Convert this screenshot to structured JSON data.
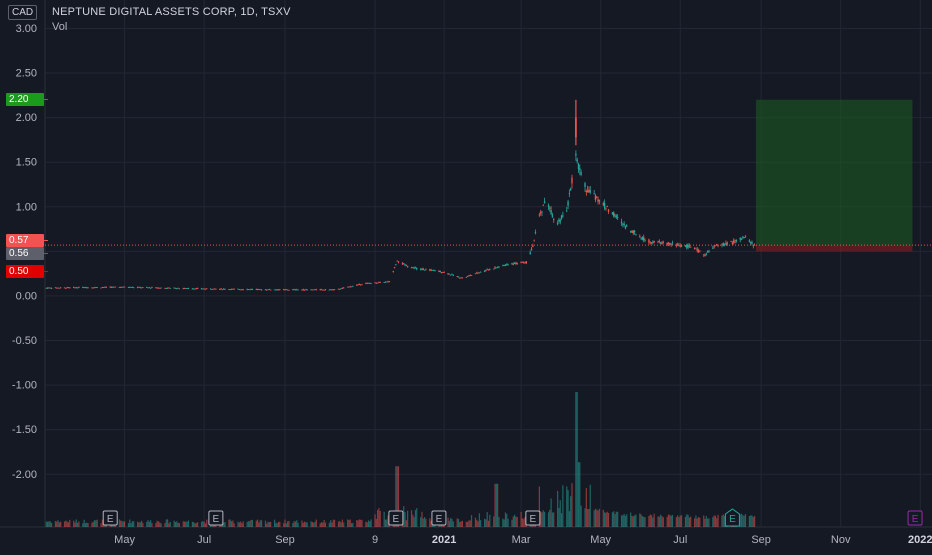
{
  "header": {
    "currency": "CAD",
    "symbol_line": "NEPTUNE DIGITAL ASSETS CORP, 1D, TSXV",
    "volume_label": "Vol"
  },
  "price_badges": [
    {
      "label": "2.20",
      "value": 2.2,
      "color": "#1b9b1b"
    },
    {
      "label": "0.57",
      "value": 0.57,
      "color": "#f05350"
    },
    {
      "label": "0.56",
      "value": 0.56,
      "color": "#5d606b"
    },
    {
      "label": "0.50",
      "value": 0.5,
      "color": "#e00000"
    }
  ],
  "colors": {
    "background": "#151924",
    "grid": "#232734",
    "axis_text": "#b2b5be",
    "up": "#26a69a",
    "down": "#ef5350",
    "target_zone": "#1e4a22",
    "stop_zone": "#5a1a1f",
    "price_line": "#ef5350",
    "earnings_future": "#9c27b0"
  },
  "earnings_markers": [
    {
      "label": "E",
      "date": "2020-04-20",
      "style": "past"
    },
    {
      "label": "E",
      "date": "2020-07-10",
      "style": "past"
    },
    {
      "label": "E",
      "date": "2020-11-25",
      "style": "past"
    },
    {
      "label": "E",
      "date": "2020-12-28",
      "style": "past"
    },
    {
      "label": "E",
      "date": "2021-03-10",
      "style": "past"
    },
    {
      "label": "E",
      "date": "2021-08-10",
      "style": "recent"
    },
    {
      "label": "E",
      "date": "2021-12-28",
      "style": "future"
    }
  ],
  "position_tool": {
    "start_date": "2021-08-28",
    "end_date": "2021-12-26",
    "entry": 0.56,
    "target": 2.2,
    "stop": 0.5
  },
  "chart_data": {
    "type": "candlestick",
    "title": "NEPTUNE DIGITAL ASSETS CORP, 1D, TSXV",
    "currency": "CAD",
    "y_ticks": [
      3.0,
      2.5,
      2.0,
      1.5,
      1.0,
      0.5,
      0.0,
      -0.5,
      -1.0,
      -1.5,
      -2.0
    ],
    "y_tick_labels": [
      "3.00",
      "2.50",
      "2.00",
      "1.50",
      "1.00",
      "0.50",
      "0.00",
      "-0.50",
      "-1.00",
      "-1.50",
      "-2.00"
    ],
    "ylim": [
      -2.3,
      3.05
    ],
    "xlim": [
      "2020-03-01",
      "2022-01-10"
    ],
    "x_ticks": [
      {
        "label": "May",
        "date": "2020-05-01"
      },
      {
        "label": "Jul",
        "date": "2020-07-01"
      },
      {
        "label": "Sep",
        "date": "2020-09-01"
      },
      {
        "label": "9",
        "date": "2020-11-09"
      },
      {
        "label": "2021",
        "date": "2021-01-01"
      },
      {
        "label": "Mar",
        "date": "2021-03-01"
      },
      {
        "label": "May",
        "date": "2021-05-01"
      },
      {
        "label": "Jul",
        "date": "2021-07-01"
      },
      {
        "label": "Sep",
        "date": "2021-09-01"
      },
      {
        "label": "Nov",
        "date": "2021-11-01"
      },
      {
        "label": "2022",
        "date": "2022-01-01"
      }
    ],
    "price_path": [
      [
        "2020-03-01",
        0.09
      ],
      [
        "2020-05-01",
        0.1
      ],
      [
        "2020-07-01",
        0.08
      ],
      [
        "2020-09-01",
        0.07
      ],
      [
        "2020-10-10",
        0.07
      ],
      [
        "2020-11-01",
        0.14
      ],
      [
        "2020-11-20",
        0.16
      ],
      [
        "2020-11-26",
        0.4
      ],
      [
        "2020-12-05",
        0.32
      ],
      [
        "2020-12-31",
        0.27
      ],
      [
        "2021-01-15",
        0.2
      ],
      [
        "2021-02-05",
        0.3
      ],
      [
        "2021-02-20",
        0.36
      ],
      [
        "2021-03-05",
        0.38
      ],
      [
        "2021-03-10",
        0.55
      ],
      [
        "2021-03-14",
        0.85
      ],
      [
        "2021-03-20",
        1.08
      ],
      [
        "2021-03-28",
        0.8
      ],
      [
        "2021-04-05",
        0.95
      ],
      [
        "2021-04-12",
        1.55
      ],
      [
        "2021-04-20",
        1.2
      ],
      [
        "2021-05-05",
        1.0
      ],
      [
        "2021-05-20",
        0.78
      ],
      [
        "2021-06-05",
        0.62
      ],
      [
        "2021-06-25",
        0.58
      ],
      [
        "2021-07-10",
        0.55
      ],
      [
        "2021-07-20",
        0.46
      ],
      [
        "2021-07-28",
        0.56
      ],
      [
        "2021-08-10",
        0.6
      ],
      [
        "2021-08-20",
        0.66
      ],
      [
        "2021-08-27",
        0.56
      ]
    ],
    "spike": {
      "date": "2021-04-12",
      "high": 2.2,
      "low": 1.69
    },
    "volume_peaks": [
      {
        "date": "2020-11-26",
        "height": 0.45
      },
      {
        "date": "2021-02-10",
        "height": 0.32
      },
      {
        "date": "2021-03-14",
        "height": 0.3
      },
      {
        "date": "2021-04-12",
        "height": 1.0
      },
      {
        "date": "2021-04-14",
        "height": 0.48
      }
    ]
  }
}
